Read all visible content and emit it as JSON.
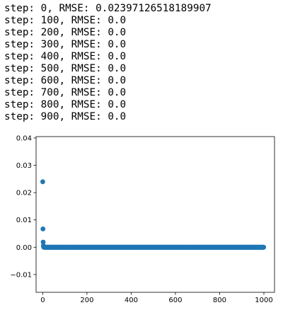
{
  "log_lines": [
    "step: 0, RMSE: 0.02397126518189907",
    "step: 100, RMSE: 0.0",
    "step: 200, RMSE: 0.0",
    "step: 300, RMSE: 0.0",
    "step: 400, RMSE: 0.0",
    "step: 500, RMSE: 0.0",
    "step: 600, RMSE: 0.0",
    "step: 700, RMSE: 0.0",
    "step: 800, RMSE: 0.0",
    "step: 900, RMSE: 0.0"
  ],
  "chart_data": {
    "type": "scatter",
    "title": "",
    "xlabel": "",
    "ylabel": "",
    "xlim": [
      -30,
      1048
    ],
    "ylim": [
      -0.0165,
      0.0405
    ],
    "xticks": [
      0,
      200,
      400,
      600,
      800,
      1000
    ],
    "xtick_labels": [
      "0",
      "200",
      "400",
      "600",
      "800",
      "1000"
    ],
    "yticks": [
      -0.01,
      0.0,
      0.01,
      0.02,
      0.03,
      0.04
    ],
    "ytick_labels": [
      "−0.01",
      "0.00",
      "0.01",
      "0.02",
      "0.03",
      "0.04"
    ],
    "grid": false,
    "marker_color": "#1f77b4",
    "points": [
      {
        "x": 0,
        "y": 0.02397126518189907
      },
      {
        "x": 1,
        "y": 0.0067
      },
      {
        "x": 2,
        "y": 0.0019
      },
      {
        "x": 3,
        "y": 0.0006
      },
      {
        "x": 4,
        "y": 0.0002
      }
    ],
    "flat_series": {
      "x_start": 5,
      "x_end": 999,
      "x_step": 1,
      "y": 0.0
    }
  }
}
